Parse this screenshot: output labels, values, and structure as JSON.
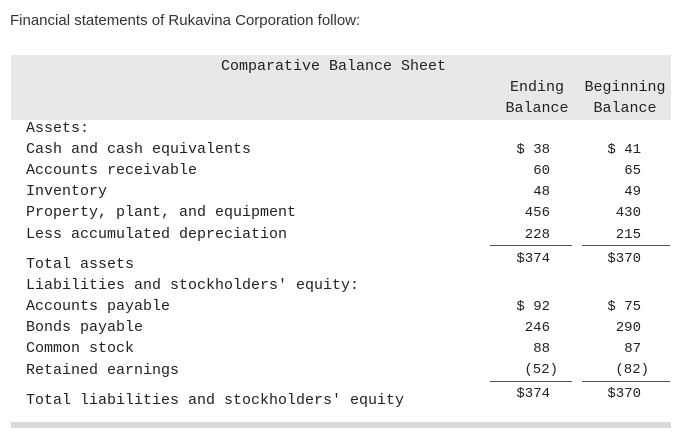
{
  "intro": "Financial statements of Rukavina Corporation follow:",
  "sheet": {
    "title": "Comparative Balance Sheet",
    "col_ending_l1": "Ending",
    "col_ending_l2": "Balance",
    "col_beginning_l1": "Beginning",
    "col_beginning_l2": "Balance"
  },
  "assets": {
    "heading": "Assets:",
    "rows": [
      {
        "label": "Cash and cash equivalents",
        "ending": "$ 38",
        "beginning": "$ 41"
      },
      {
        "label": "Accounts receivable",
        "ending": "60",
        "beginning": "65"
      },
      {
        "label": "Inventory",
        "ending": "48",
        "beginning": "49"
      },
      {
        "label": "Property, plant, and equipment",
        "ending": "456",
        "beginning": "430"
      },
      {
        "label": "Less accumulated depreciation",
        "ending": "228",
        "beginning": "215"
      }
    ],
    "total": {
      "label": "Total assets",
      "ending": "$374",
      "beginning": "$370"
    }
  },
  "liabilities": {
    "heading": "Liabilities and stockholders' equity:",
    "rows": [
      {
        "label": "Accounts payable",
        "ending": "$ 92",
        "beginning": "$ 75"
      },
      {
        "label": "Bonds payable",
        "ending": "246",
        "beginning": "290"
      },
      {
        "label": "Common stock",
        "ending": "88",
        "beginning": "87"
      },
      {
        "label": "Retained earnings",
        "ending": "(52)",
        "beginning": "(82)"
      }
    ],
    "total": {
      "label": "Total liabilities and stockholders' equity",
      "ending": "$374",
      "beginning": "$370"
    }
  }
}
